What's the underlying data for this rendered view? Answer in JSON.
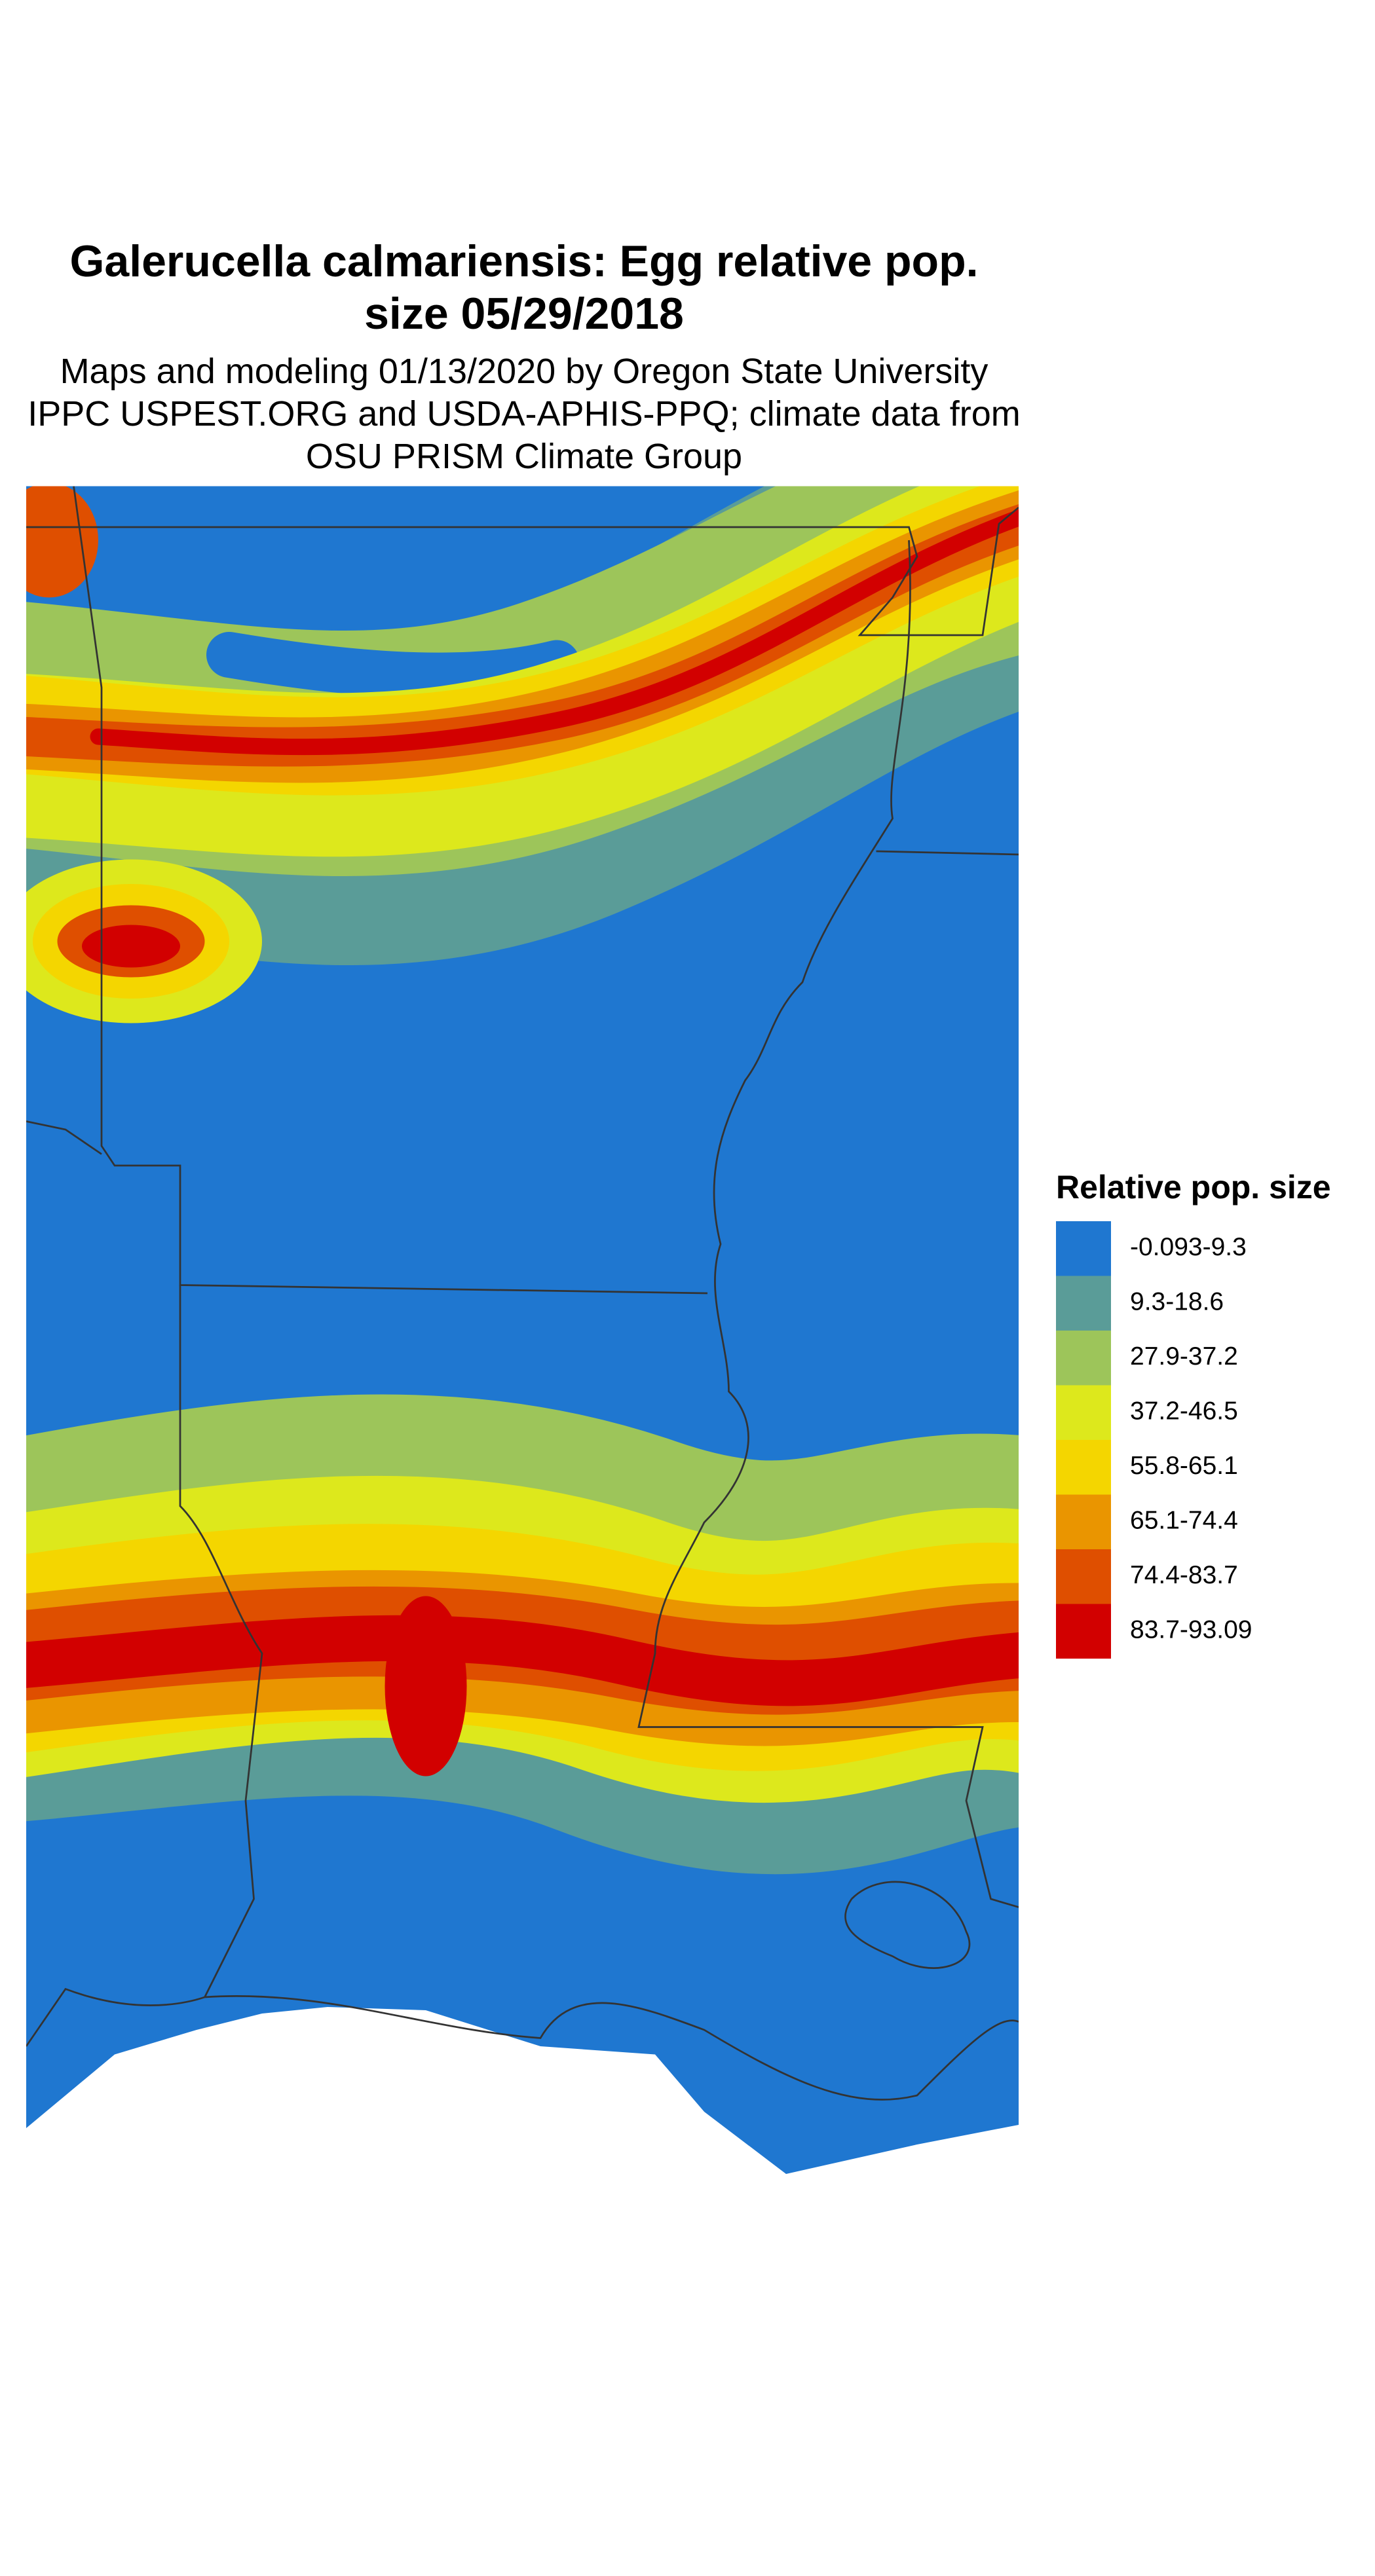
{
  "title_lines": [
    "Galerucella calmariensis: Egg relative pop.",
    "size 05/29/2018"
  ],
  "subtitle_lines": [
    "Maps and modeling 01/13/2020 by Oregon State University",
    "IPPC USPEST.ORG and USDA-APHIS-PPQ; climate data from",
    "OSU PRISM Climate Group"
  ],
  "legend": {
    "title": "Relative pop. size",
    "items": [
      {
        "label": "-0.093-9.3",
        "color": "#1f77d0"
      },
      {
        "label": "9.3-18.6",
        "color": "#5a9c98"
      },
      {
        "label": "27.9-37.2",
        "color": "#9dc55a"
      },
      {
        "label": "37.2-46.5",
        "color": "#dde81c"
      },
      {
        "label": "55.8-65.1",
        "color": "#f4d600"
      },
      {
        "label": "65.1-74.4",
        "color": "#ea9500"
      },
      {
        "label": "74.4-83.7",
        "color": "#df4f00"
      },
      {
        "label": "83.7-93.09",
        "color": "#d20000"
      }
    ]
  }
}
